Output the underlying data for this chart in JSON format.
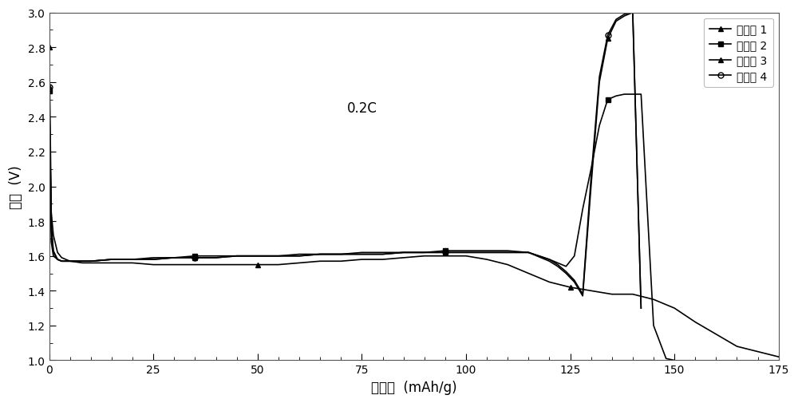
{
  "title": "",
  "xlabel": "电容量  (mAh/g)",
  "ylabel": "电压  (V)",
  "annotation": "0.2C",
  "xlim": [
    0,
    175
  ],
  "ylim": [
    1.0,
    3.0
  ],
  "xticks": [
    0,
    25,
    50,
    75,
    100,
    125,
    150,
    175
  ],
  "yticks": [
    1.0,
    1.2,
    1.4,
    1.6,
    1.8,
    2.0,
    2.2,
    2.4,
    2.6,
    2.8,
    3.0
  ],
  "series": {
    "s1": {
      "label": "实施例 1",
      "x": [
        0,
        0.5,
        1,
        2,
        3,
        5,
        8,
        10,
        15,
        20,
        25,
        30,
        35,
        40,
        45,
        50,
        55,
        60,
        65,
        70,
        75,
        80,
        85,
        90,
        95,
        100,
        105,
        110,
        115,
        120,
        125,
        130,
        135,
        140,
        145,
        150,
        155,
        160,
        165,
        170,
        175
      ],
      "y": [
        2.8,
        1.85,
        1.72,
        1.62,
        1.59,
        1.57,
        1.56,
        1.56,
        1.56,
        1.56,
        1.55,
        1.55,
        1.55,
        1.55,
        1.55,
        1.55,
        1.55,
        1.56,
        1.57,
        1.57,
        1.58,
        1.58,
        1.59,
        1.6,
        1.6,
        1.6,
        1.58,
        1.55,
        1.5,
        1.45,
        1.42,
        1.4,
        1.38,
        1.38,
        1.35,
        1.3,
        1.22,
        1.15,
        1.08,
        1.05,
        1.02
      ]
    },
    "s2": {
      "label": "实施例 2",
      "x": [
        0,
        0.5,
        1,
        2,
        3,
        5,
        8,
        10,
        15,
        20,
        25,
        30,
        35,
        40,
        45,
        50,
        55,
        60,
        65,
        70,
        75,
        80,
        85,
        90,
        95,
        100,
        105,
        110,
        115,
        120,
        122,
        124,
        126,
        128,
        130,
        132,
        134,
        136,
        138,
        140,
        142,
        145,
        148,
        150
      ],
      "y": [
        2.55,
        1.68,
        1.6,
        1.58,
        1.57,
        1.57,
        1.57,
        1.57,
        1.58,
        1.58,
        1.59,
        1.59,
        1.6,
        1.6,
        1.6,
        1.6,
        1.6,
        1.61,
        1.61,
        1.61,
        1.62,
        1.62,
        1.62,
        1.62,
        1.63,
        1.63,
        1.63,
        1.63,
        1.62,
        1.58,
        1.56,
        1.54,
        1.6,
        1.87,
        2.1,
        2.35,
        2.5,
        2.52,
        2.53,
        2.53,
        2.53,
        1.2,
        1.01,
        1.0
      ]
    },
    "s3": {
      "label": "实施例 3",
      "x": [
        0,
        0.5,
        1,
        2,
        3,
        5,
        8,
        10,
        15,
        20,
        25,
        30,
        35,
        40,
        45,
        50,
        55,
        60,
        65,
        70,
        75,
        80,
        85,
        90,
        95,
        100,
        105,
        110,
        115,
        120,
        122,
        124,
        126,
        128,
        130,
        132,
        134,
        136,
        138,
        140,
        142
      ],
      "y": [
        2.57,
        1.75,
        1.62,
        1.58,
        1.57,
        1.57,
        1.57,
        1.57,
        1.58,
        1.58,
        1.58,
        1.59,
        1.59,
        1.59,
        1.6,
        1.6,
        1.6,
        1.6,
        1.61,
        1.61,
        1.61,
        1.61,
        1.62,
        1.62,
        1.62,
        1.62,
        1.62,
        1.62,
        1.62,
        1.57,
        1.54,
        1.5,
        1.45,
        1.37,
        2.0,
        2.6,
        2.85,
        2.95,
        2.98,
        3.0,
        1.3
      ]
    },
    "s4": {
      "label": "实施例 4",
      "x": [
        0,
        0.5,
        1,
        2,
        3,
        5,
        8,
        10,
        15,
        20,
        25,
        30,
        35,
        40,
        45,
        50,
        55,
        60,
        65,
        70,
        75,
        80,
        85,
        90,
        95,
        100,
        105,
        110,
        115,
        120,
        122,
        124,
        126,
        128,
        130,
        132,
        134,
        136,
        138,
        140,
        142
      ],
      "y": [
        2.57,
        1.78,
        1.63,
        1.58,
        1.57,
        1.57,
        1.57,
        1.57,
        1.58,
        1.58,
        1.58,
        1.59,
        1.59,
        1.59,
        1.6,
        1.6,
        1.6,
        1.6,
        1.61,
        1.61,
        1.61,
        1.61,
        1.62,
        1.62,
        1.62,
        1.62,
        1.62,
        1.62,
        1.62,
        1.58,
        1.55,
        1.51,
        1.46,
        1.38,
        2.05,
        2.63,
        2.87,
        2.96,
        2.99,
        3.0,
        1.3
      ]
    }
  },
  "background_color": "#ffffff",
  "marker_every_s1": 15,
  "marker_every_s2": 12,
  "marker_every_s3": 12,
  "marker_every_s4": 12,
  "linewidth": 1.2
}
